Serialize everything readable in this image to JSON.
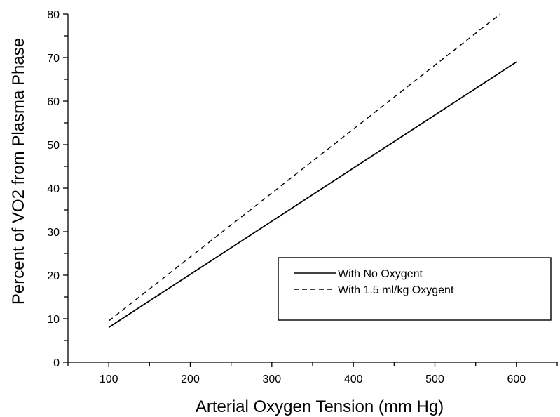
{
  "chart_data": {
    "type": "line",
    "title": "",
    "xlabel": "Arterial Oxygen Tension (mm Hg)",
    "ylabel": "Percent of VO2 from Plasma Phase",
    "xlim": [
      50,
      650
    ],
    "ylim": [
      0,
      80
    ],
    "x_ticks": [
      100,
      200,
      300,
      400,
      500,
      600
    ],
    "y_ticks": [
      0,
      10,
      20,
      30,
      40,
      50,
      60,
      70,
      80
    ],
    "x_ticks_labels": [
      "100",
      "200",
      "300",
      "400",
      "500",
      "600"
    ],
    "y_ticks_labels": [
      "0",
      "10",
      "20",
      "30",
      "40",
      "50",
      "60",
      "70",
      "80"
    ],
    "grid": false,
    "legend_position": "lower-right",
    "series": [
      {
        "name": "With No Oxygent",
        "line_style": "solid",
        "color": "#000000",
        "x": [
          100,
          600
        ],
        "y": [
          8,
          69
        ]
      },
      {
        "name": "With 1.5 ml/kg Oxygent",
        "line_style": "dashed",
        "color": "#000000",
        "x": [
          100,
          580
        ],
        "y": [
          9.5,
          80
        ]
      }
    ]
  }
}
